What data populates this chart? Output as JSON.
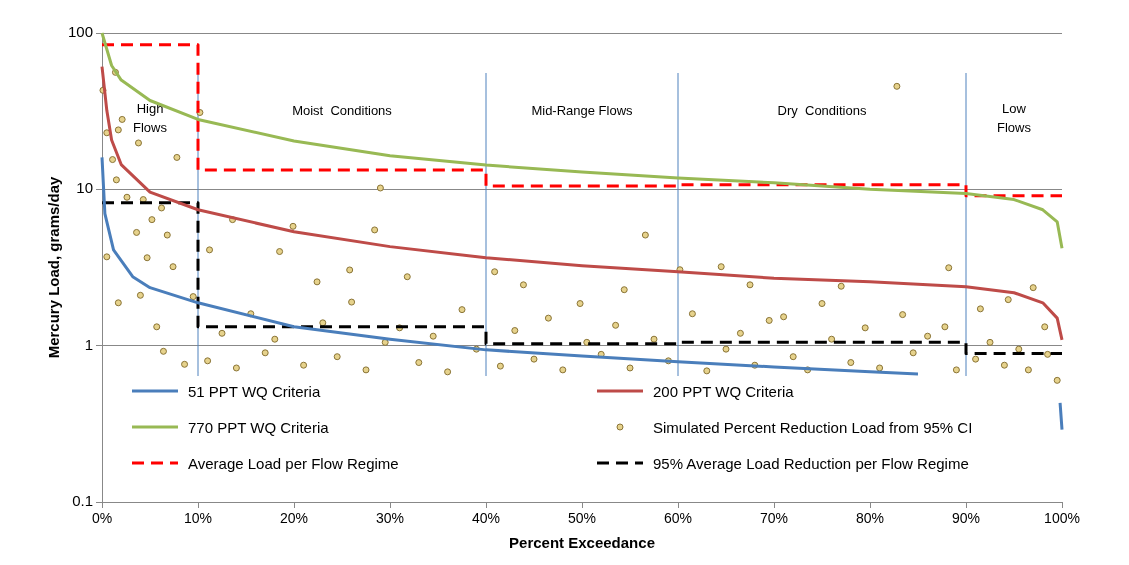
{
  "chart_data": {
    "type": "line",
    "xlabel": "Percent Exceedance",
    "ylabel": "Mercury Load, grams/day",
    "xlim": [
      0,
      100
    ],
    "xticks": [
      {
        "value": 0,
        "label": "0%"
      },
      {
        "value": 10,
        "label": "10%"
      },
      {
        "value": 20,
        "label": "20%"
      },
      {
        "value": 30,
        "label": "30%"
      },
      {
        "value": 40,
        "label": "40%"
      },
      {
        "value": 50,
        "label": "50%"
      },
      {
        "value": 60,
        "label": "60%"
      },
      {
        "value": 70,
        "label": "70%"
      },
      {
        "value": 80,
        "label": "80%"
      },
      {
        "value": 90,
        "label": "90%"
      },
      {
        "value": 100,
        "label": "100%"
      }
    ],
    "ylim": [
      0.1,
      100
    ],
    "yticks": [
      0.1,
      1,
      10,
      100
    ],
    "log": "y",
    "grid": "y",
    "legend": "bottom",
    "ref_lines": [
      {
        "axis": "x",
        "value": 10,
        "color": "#4f81bd"
      },
      {
        "axis": "x",
        "value": 40,
        "color": "#4f81bd"
      },
      {
        "axis": "x",
        "value": 60,
        "color": "#4f81bd"
      },
      {
        "axis": "x",
        "value": 90,
        "color": "#4f81bd"
      }
    ],
    "annotations": [
      "High Flows",
      "Moist  Conditions",
      "Mid-Range Flows",
      "Dry  Conditions",
      "Low Flows"
    ],
    "series": [
      {
        "name": "51 PPT WQ Criteria",
        "color": "#4a7ebb",
        "marker": "none",
        "line_style": "solid",
        "x": [
          0,
          0.3,
          1.2,
          3.2,
          5,
          10,
          20,
          30,
          40,
          50,
          60,
          70,
          80,
          85,
          90,
          99.8,
          100
        ],
        "values": [
          16,
          7,
          4.1,
          2.76,
          2.35,
          1.88,
          1.32,
          1.1,
          0.94,
          0.86,
          0.79,
          0.73,
          0.68,
          0.66,
          null,
          0.43,
          0.29
        ]
      },
      {
        "name": "200 PPT WQ Criteria",
        "color": "#be4b48",
        "marker": "none",
        "line_style": "solid",
        "x": [
          0,
          0.5,
          1,
          2,
          5,
          10,
          20,
          30,
          40,
          50,
          60,
          70,
          80,
          90,
          95,
          98,
          99.5,
          100
        ],
        "values": [
          61,
          32,
          20.7,
          14.4,
          9.6,
          7.4,
          5.35,
          4.3,
          3.65,
          3.25,
          2.97,
          2.7,
          2.56,
          2.38,
          2.18,
          1.88,
          1.5,
          1.09
        ]
      },
      {
        "name": "770 PPT WQ Criteria",
        "color": "#98b954",
        "marker": "none",
        "line_style": "solid",
        "x": [
          0,
          1,
          2,
          5,
          10,
          20,
          30,
          40,
          50,
          60,
          70,
          80,
          90,
          95,
          98,
          99.5,
          100
        ],
        "values": [
          100,
          62,
          50,
          37,
          28,
          20.4,
          16.4,
          14.3,
          12.9,
          11.8,
          11,
          10,
          9.4,
          8.6,
          7.4,
          6.2,
          4.2
        ]
      },
      {
        "name": "Simulated Percent Reduction Load from 95% CI",
        "type": "scatter",
        "color": "#e6d28c",
        "marker": "circle",
        "x": [
          0.1,
          1.4,
          0.5,
          1.7,
          2.1,
          3.8,
          7.8,
          1.1,
          1.5,
          2.6,
          4.3,
          6.2,
          5.2,
          0.5,
          3.6,
          6.8,
          4.7,
          1.7,
          4,
          7.4,
          9.5,
          5.7,
          6.4,
          8.6,
          10.2,
          11.2,
          13.6,
          19.9,
          29,
          28.4,
          25.8,
          31.8,
          18.5,
          22.4,
          56.6,
          82.8,
          64.5,
          88.2,
          60.2,
          77,
          97,
          40.9,
          43.9,
          54.4,
          67.5,
          94.4,
          91.5,
          98.2,
          75,
          49.8,
          83.4,
          87.8,
          71,
          11,
          12.5,
          14,
          15.5,
          17,
          18,
          21,
          23,
          24.5,
          26,
          27.5,
          29.5,
          31,
          33,
          34.5,
          36,
          37.5,
          39,
          41.5,
          43,
          45,
          46.5,
          48,
          50.5,
          52,
          53.5,
          55,
          57.5,
          59,
          61.5,
          63,
          65,
          66.5,
          68,
          69.5,
          72,
          73.5,
          76,
          78,
          79.5,
          81,
          84.5,
          86,
          89,
          91,
          92.5,
          94,
          95.5,
          96.5,
          98.5,
          99.5
        ],
        "values": [
          43,
          56,
          23,
          24,
          28,
          19.8,
          16,
          15.5,
          11.5,
          8.9,
          8.6,
          7.6,
          6.4,
          3.7,
          5.3,
          5.1,
          3.65,
          1.88,
          2.1,
          3.2,
          2.06,
          1.32,
          0.92,
          0.76,
          31,
          4.1,
          6.4,
          5.8,
          10.2,
          5.5,
          3.05,
          2.76,
          4,
          2.56,
          5.1,
          45.6,
          3.2,
          3.15,
          3.06,
          2.4,
          2.35,
          2.97,
          2.45,
          2.28,
          2.45,
          1.97,
          1.72,
          1.32,
          1.86,
          1.86,
          1.58,
          1.32,
          1.53,
          0.8,
          1.2,
          0.72,
          1.6,
          0.9,
          1.1,
          0.75,
          1.4,
          0.85,
          1.9,
          0.7,
          1.05,
          1.3,
          0.78,
          1.15,
          0.68,
          1.7,
          0.95,
          0.74,
          1.25,
          0.82,
          1.5,
          0.7,
          1.05,
          0.88,
          1.35,
          0.72,
          1.1,
          0.8,
          1.6,
          0.69,
          0.95,
          1.2,
          0.75,
          1.45,
          0.85,
          0.7,
          1.1,
          0.78,
          1.3,
          0.72,
          0.9,
          1.15,
          0.7,
          0.82,
          1.05,
          0.75,
          0.95,
          0.7,
          0.88,
          0.6
        ]
      },
      {
        "name": "Average Load per Flow Regime",
        "color": "#ff0000",
        "marker": "none",
        "line_style": "dashed",
        "x": [
          0,
          10,
          10,
          40,
          40,
          60,
          60,
          90,
          90,
          100
        ],
        "values": [
          84,
          84,
          13.3,
          13.3,
          10.5,
          10.5,
          10.7,
          10.7,
          9.1,
          9.1
        ]
      },
      {
        "name": "95% Average Load Reduction per Flow Regime",
        "color": "#000000",
        "marker": "none",
        "line_style": "dashed",
        "x": [
          0,
          10,
          10,
          40,
          40,
          60,
          60,
          90,
          90,
          100
        ],
        "values": [
          8.2,
          8.2,
          1.32,
          1.32,
          1.03,
          1.03,
          1.05,
          1.05,
          0.89,
          0.89
        ]
      }
    ]
  }
}
